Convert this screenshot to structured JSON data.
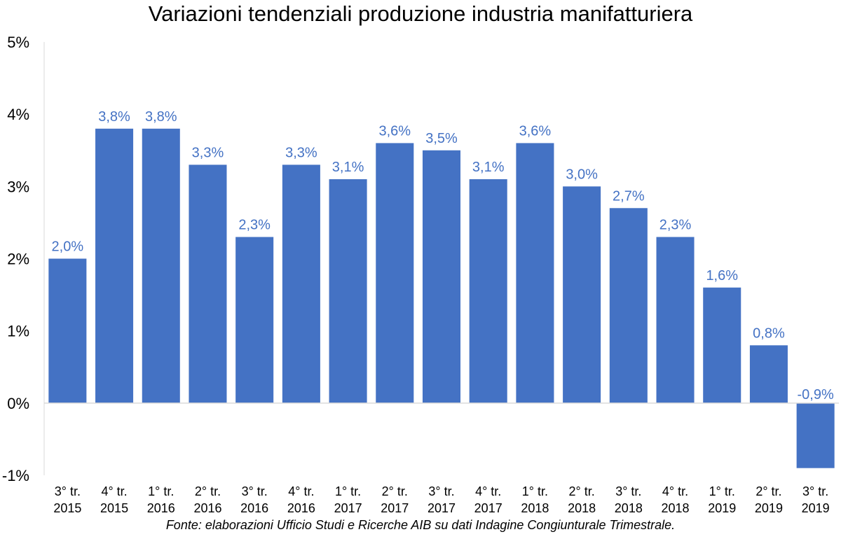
{
  "chart_data": {
    "type": "bar",
    "title": "Variazioni tendenziali produzione industria manifatturiera",
    "source": "Fonte: elaborazioni Ufficio Studi e Ricerche AIB su dati Indagine Congiunturale Trimestrale.",
    "categories": [
      [
        "3° tr.",
        "2015"
      ],
      [
        "4° tr.",
        "2015"
      ],
      [
        "1° tr.",
        "2016"
      ],
      [
        "2° tr.",
        "2016"
      ],
      [
        "3° tr.",
        "2016"
      ],
      [
        "4° tr.",
        "2016"
      ],
      [
        "1° tr.",
        "2017"
      ],
      [
        "2° tr.",
        "2017"
      ],
      [
        "3° tr.",
        "2017"
      ],
      [
        "4° tr.",
        "2017"
      ],
      [
        "1° tr.",
        "2018"
      ],
      [
        "2° tr.",
        "2018"
      ],
      [
        "3° tr.",
        "2018"
      ],
      [
        "4° tr.",
        "2018"
      ],
      [
        "1° tr.",
        "2019"
      ],
      [
        "2° tr.",
        "2019"
      ],
      [
        "3° tr.",
        "2019"
      ]
    ],
    "values": [
      2.0,
      3.8,
      3.8,
      3.3,
      2.3,
      3.3,
      3.1,
      3.6,
      3.5,
      3.1,
      3.6,
      3.0,
      2.7,
      2.3,
      1.6,
      0.8,
      -0.9
    ],
    "data_labels": [
      "2,0%",
      "3,8%",
      "3,8%",
      "3,3%",
      "2,3%",
      "3,3%",
      "3,1%",
      "3,6%",
      "3,5%",
      "3,1%",
      "3,6%",
      "3,0%",
      "2,7%",
      "2,3%",
      "1,6%",
      "0,8%",
      "-0,9%"
    ],
    "y_ticks": [
      -1,
      0,
      1,
      2,
      3,
      4,
      5
    ],
    "y_tick_labels": [
      "-1%",
      "0%",
      "1%",
      "2%",
      "3%",
      "4%",
      "5%"
    ],
    "ylim": [
      -1,
      5
    ],
    "grid": false,
    "legend": "none",
    "bar_color": "#4472c4",
    "label_color": "#4472c4"
  }
}
